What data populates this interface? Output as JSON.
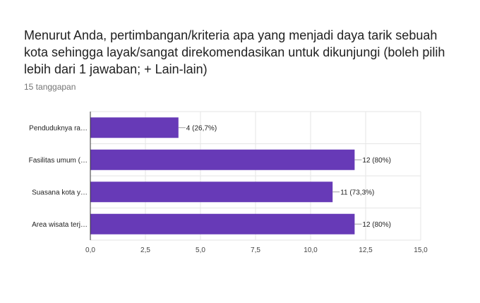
{
  "question": {
    "title": "Menurut Anda, pertimbangan/kriteria apa yang menjadi daya tarik sebuah kota sehingga layak/sangat direkomendasikan untuk dikunjungi (boleh pilih lebih dari 1 jawaban; + Lain-lain)",
    "responses": "15 tanggapan"
  },
  "colors": {
    "bar": "#673ab7",
    "grid": "#e6e6e6",
    "axis": "#333333"
  },
  "chart_data": {
    "type": "bar",
    "orientation": "horizontal",
    "categories": [
      "Penduduknya ra…",
      "Fasilitas umum (…",
      "Suasana kota y…",
      "Area wisata terj…"
    ],
    "values": [
      4,
      12,
      11,
      12
    ],
    "data_labels": [
      "4 (26,7%)",
      "12 (80%)",
      "11 (73,3%)",
      "12 (80%)"
    ],
    "xlim": [
      0,
      15
    ],
    "x_ticks": [
      0,
      2.5,
      5,
      7.5,
      10,
      12.5,
      15
    ],
    "x_tick_labels": [
      "0,0",
      "2,5",
      "5,0",
      "7,5",
      "10,0",
      "12,5",
      "15,0"
    ],
    "grid": true
  }
}
